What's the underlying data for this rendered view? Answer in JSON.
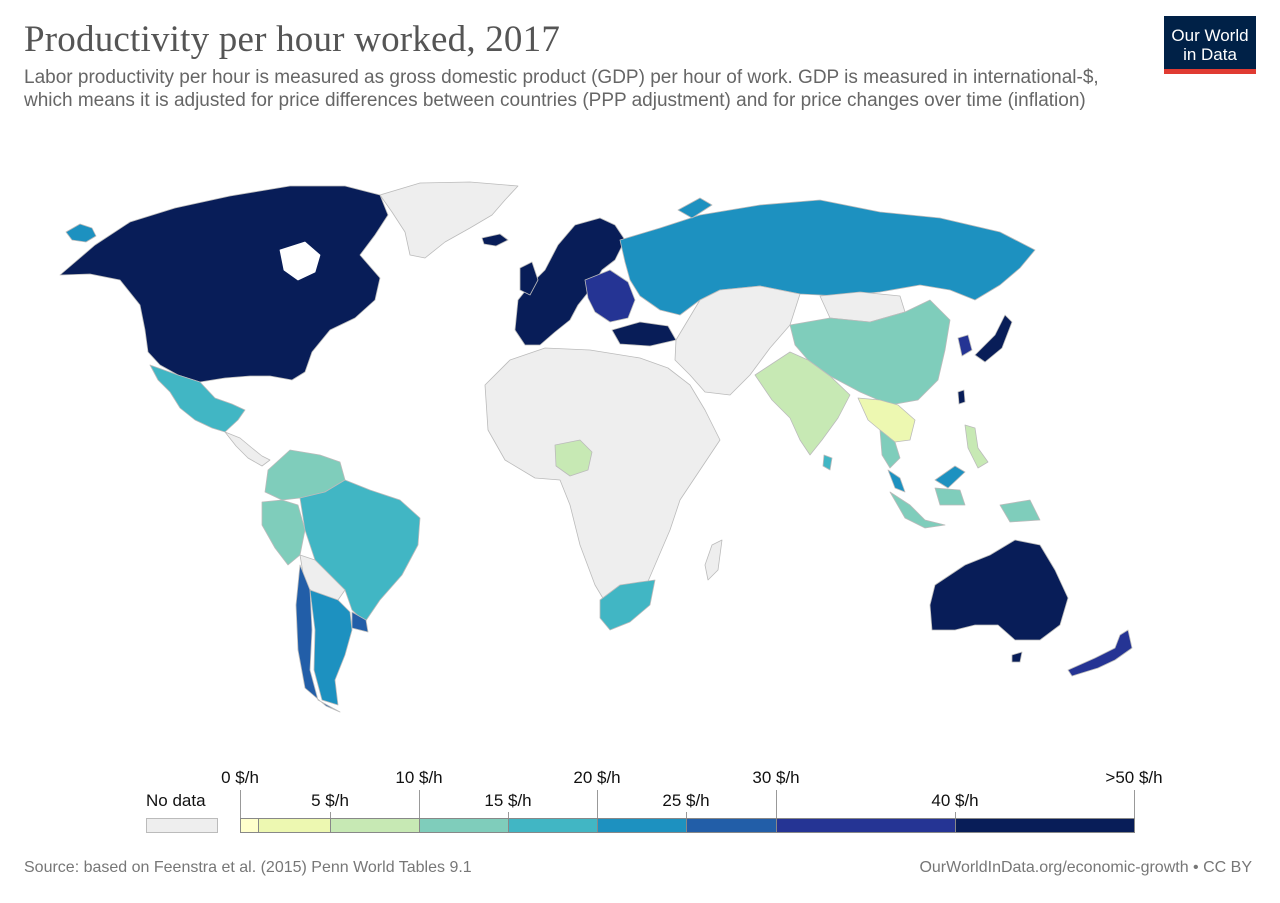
{
  "header": {
    "title": "Productivity per hour worked, 2017",
    "subtitle": "Labor productivity per hour is measured as gross domestic product (GDP) per hour of work. GDP is measured in international-$, which means it is adjusted for price differences between countries (PPP adjustment) and for price changes over time (inflation)"
  },
  "logo": {
    "line1": "Our World",
    "line2": "in Data"
  },
  "colors": {
    "no_data": "#eeeeee",
    "ocean": "#ffffff",
    "border": "#bbbbbb",
    "logo_bg": "#002147",
    "logo_accent": "#e03b32"
  },
  "legend": {
    "no_data_label": "No data",
    "upper_labels": [
      "0 $/h",
      "10 $/h",
      "20 $/h",
      "30 $/h",
      ">50 $/h"
    ],
    "lower_labels": [
      "5 $/h",
      "15 $/h",
      "25 $/h",
      "40 $/h"
    ],
    "bins": [
      {
        "from": 0,
        "to": 1,
        "color": "#ffffcc"
      },
      {
        "from": 1,
        "to": 5,
        "color": "#edf8b1"
      },
      {
        "from": 5,
        "to": 10,
        "color": "#c7e9b4"
      },
      {
        "from": 10,
        "to": 15,
        "color": "#7fcdbb"
      },
      {
        "from": 15,
        "to": 20,
        "color": "#41b6c4"
      },
      {
        "from": 20,
        "to": 25,
        "color": "#1d91c0"
      },
      {
        "from": 25,
        "to": 30,
        "color": "#225ea8"
      },
      {
        "from": 30,
        "to": 40,
        "color": "#253494"
      },
      {
        "from": 40,
        "to": 50,
        "color": "#081d58"
      }
    ]
  },
  "map_regions": [
    {
      "name": "north-america",
      "color": "#081d58"
    },
    {
      "name": "greenland",
      "color": "#eeeeee"
    },
    {
      "name": "alaska-strip",
      "color": "#1d91c0"
    },
    {
      "name": "mexico",
      "color": "#41b6c4"
    },
    {
      "name": "central-america",
      "color": "#eeeeee"
    },
    {
      "name": "colombia-venezuela",
      "color": "#7fcdbb"
    },
    {
      "name": "peru",
      "color": "#7fcdbb"
    },
    {
      "name": "brazil",
      "color": "#41b6c4"
    },
    {
      "name": "bolivia-paraguay",
      "color": "#eeeeee"
    },
    {
      "name": "argentina",
      "color": "#1d91c0"
    },
    {
      "name": "chile",
      "color": "#225ea8"
    },
    {
      "name": "uruguay",
      "color": "#225ea8"
    },
    {
      "name": "western-europe",
      "color": "#081d58"
    },
    {
      "name": "central-europe",
      "color": "#253494"
    },
    {
      "name": "iceland",
      "color": "#081d58"
    },
    {
      "name": "turkey",
      "color": "#081d58"
    },
    {
      "name": "russia",
      "color": "#1d91c0"
    },
    {
      "name": "central-asia-middle-east",
      "color": "#eeeeee"
    },
    {
      "name": "africa",
      "color": "#eeeeee"
    },
    {
      "name": "nigeria",
      "color": "#c7e9b4"
    },
    {
      "name": "south-africa",
      "color": "#41b6c4"
    },
    {
      "name": "india",
      "color": "#c7e9b4"
    },
    {
      "name": "china",
      "color": "#7fcdbb"
    },
    {
      "name": "mongolia",
      "color": "#eeeeee"
    },
    {
      "name": "myanmar-laos",
      "color": "#edf8b1"
    },
    {
      "name": "thailand",
      "color": "#7fcdbb"
    },
    {
      "name": "sri-lanka",
      "color": "#41b6c4"
    },
    {
      "name": "malaysia",
      "color": "#1d91c0"
    },
    {
      "name": "indonesia",
      "color": "#7fcdbb"
    },
    {
      "name": "philippines",
      "color": "#c7e9b4"
    },
    {
      "name": "korea",
      "color": "#253494"
    },
    {
      "name": "japan",
      "color": "#081d58"
    },
    {
      "name": "taiwan",
      "color": "#081d58"
    },
    {
      "name": "australia",
      "color": "#081d58"
    },
    {
      "name": "new-zealand",
      "color": "#253494"
    }
  ],
  "footer": {
    "source": "Source: based on Feenstra et al. (2015) Penn World Tables 9.1",
    "link": "OurWorldInData.org/economic-growth • CC BY"
  }
}
